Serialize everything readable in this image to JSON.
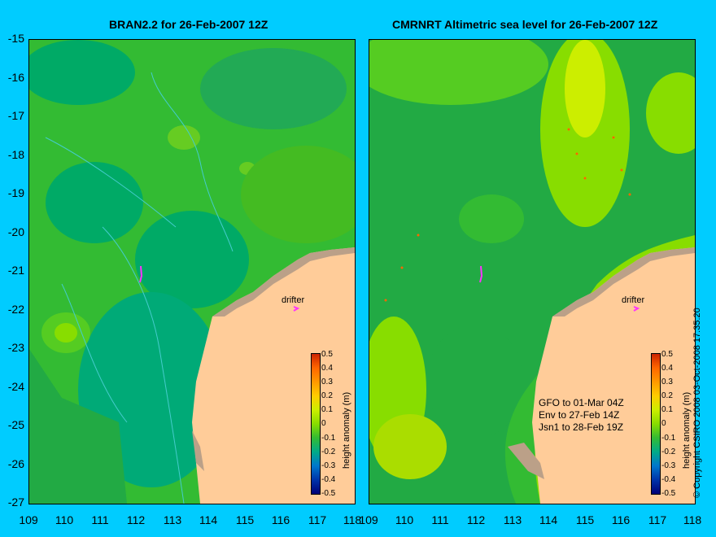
{
  "left_panel": {
    "title": "BRAN2.2 for 26-Feb-2007 12Z"
  },
  "right_panel": {
    "title": "CMRNRT Altimetric sea level  for 26-Feb-2007 12Z"
  },
  "y_ticks": [
    "-15",
    "-16",
    "-17",
    "-18",
    "-19",
    "-20",
    "-21",
    "-22",
    "-23",
    "-24",
    "-25",
    "-26",
    "-27"
  ],
  "x_ticks_left": [
    "109",
    "110",
    "111",
    "112",
    "113",
    "114",
    "115",
    "116",
    "117",
    "118"
  ],
  "x_ticks_right": [
    "109",
    "110",
    "111",
    "112",
    "113",
    "114",
    "115",
    "116",
    "117",
    "118"
  ],
  "drifter_label": "drifter",
  "colorbar": {
    "label": "height anomaly (m)",
    "ticks": [
      "0.5",
      "0.4",
      "0.3",
      "0.2",
      "0.1",
      "0",
      "-0.1",
      "-0.2",
      "-0.3",
      "-0.4",
      "-0.5"
    ],
    "colors": [
      "#cc2200",
      "#ff6600",
      "#ff9900",
      "#ffcc00",
      "#ccee00",
      "#88dd00",
      "#33bb33",
      "#00aa88",
      "#0077cc",
      "#0033aa",
      "#000077"
    ]
  },
  "satellite_passes": [
    "GFO to 01-Mar 04Z",
    "Env to 27-Feb 14Z",
    "Jsn1 to 28-Feb 19Z"
  ],
  "copyright": "© Copyright CSIRO 2008   03-Oct-2008 17:35:20",
  "colors": {
    "background": "#00ccff",
    "land": "#ffcc99",
    "shelf": "#bba088",
    "ocean": "#33bb33"
  }
}
